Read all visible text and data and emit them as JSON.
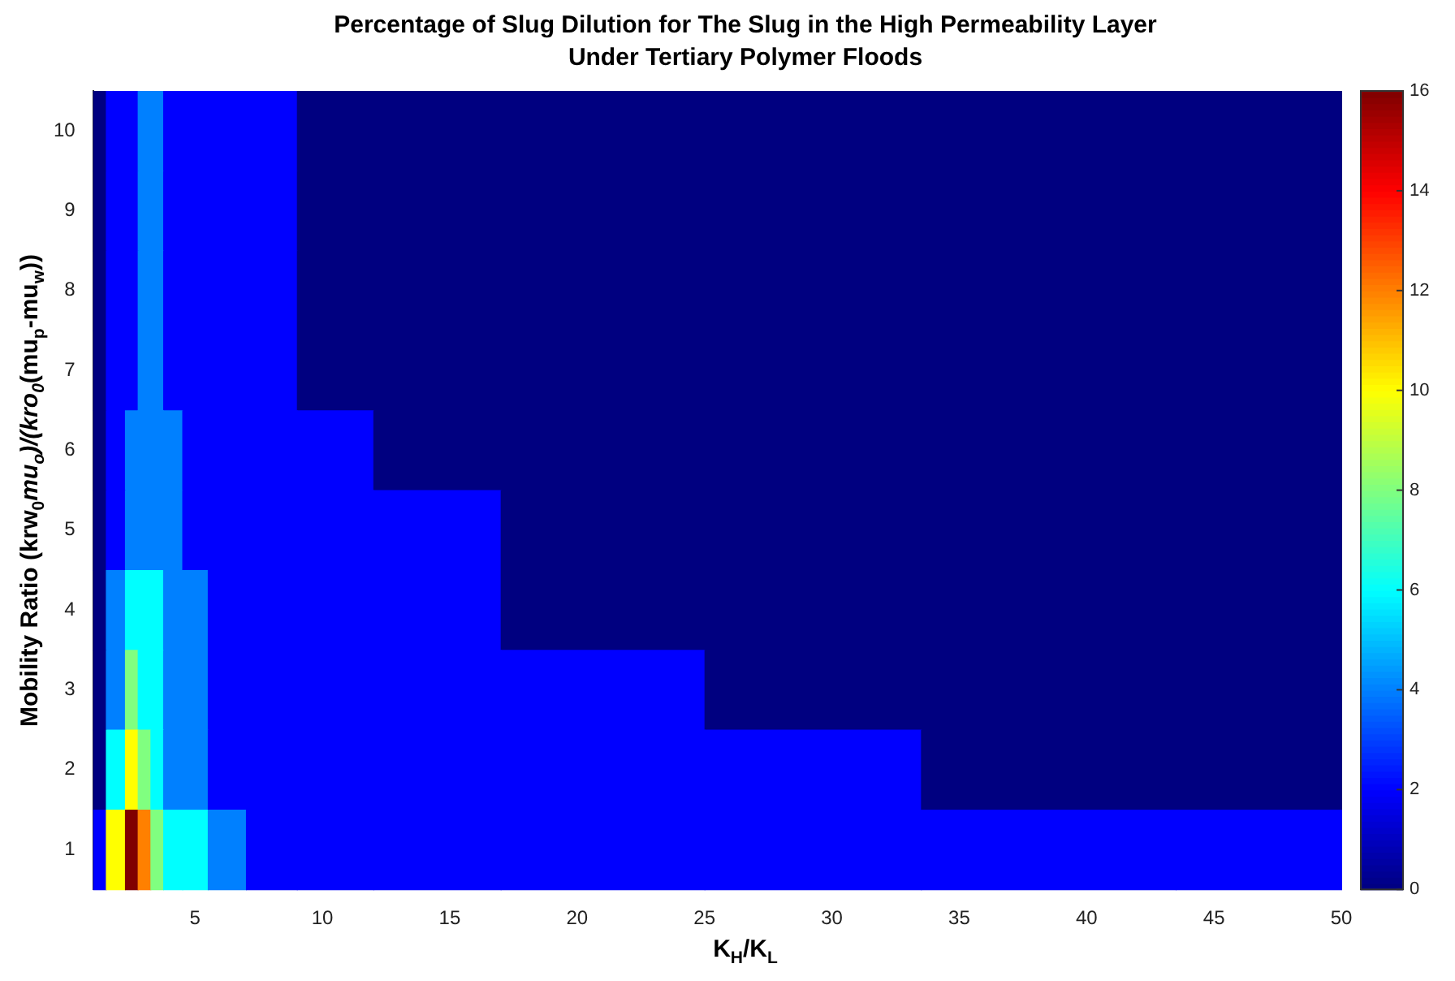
{
  "chart_data": {
    "type": "heatmap",
    "title": "Percentage of Slug Dilution for The Slug in the High Permeability Layer\nUnder Tertiary Polymer Floods",
    "xlabel": "K$_{H}$/K$_{L}$",
    "ylabel": "Mobility Ratio (krw$_{0}$*mu$_{o}$)/(kro$_{0}$*(mu$_{p}$-mu$_{w}$))",
    "x": [
      1,
      2,
      2.5,
      3,
      3.5,
      4,
      5,
      6,
      8,
      10,
      14,
      20,
      30,
      37,
      50
    ],
    "y_categories": [
      "10",
      "9",
      "8",
      "7",
      "6",
      "5",
      "4",
      "3",
      "2",
      "1"
    ],
    "cells": [
      [
        0,
        2,
        2,
        4,
        4,
        2,
        2,
        2,
        2,
        0,
        0,
        0,
        0,
        0,
        0
      ],
      [
        0,
        2,
        2,
        4,
        4,
        2,
        2,
        2,
        2,
        0,
        0,
        0,
        0,
        0,
        0
      ],
      [
        0,
        2,
        2,
        4,
        4,
        2,
        2,
        2,
        2,
        0,
        0,
        0,
        0,
        0,
        0
      ],
      [
        0,
        2,
        2,
        4,
        4,
        2,
        2,
        2,
        2,
        0,
        0,
        0,
        0,
        0,
        0
      ],
      [
        0,
        2,
        4,
        4,
        4,
        4,
        2,
        2,
        2,
        2,
        0,
        0,
        0,
        0,
        0
      ],
      [
        0,
        2,
        4,
        4,
        4,
        4,
        2,
        2,
        2,
        2,
        2,
        0,
        0,
        0,
        0
      ],
      [
        0,
        4,
        6,
        6,
        6,
        4,
        4,
        2,
        2,
        2,
        2,
        0,
        0,
        0,
        0
      ],
      [
        0,
        4,
        8,
        6,
        6,
        4,
        4,
        2,
        2,
        2,
        2,
        2,
        0,
        0,
        0
      ],
      [
        0,
        6,
        10,
        8,
        6,
        4,
        4,
        2,
        2,
        2,
        2,
        2,
        2,
        0,
        0
      ],
      [
        2,
        10,
        16,
        12,
        8,
        6,
        6,
        4,
        2,
        2,
        2,
        2,
        2,
        2,
        2
      ]
    ],
    "clim": [
      0,
      16
    ],
    "cticks": [
      0,
      2,
      4,
      6,
      8,
      10,
      12,
      14,
      16
    ],
    "xlim": [
      1,
      50
    ],
    "xticks": [
      5,
      10,
      15,
      20,
      25,
      30,
      35,
      40,
      45,
      50
    ],
    "grid": false
  }
}
